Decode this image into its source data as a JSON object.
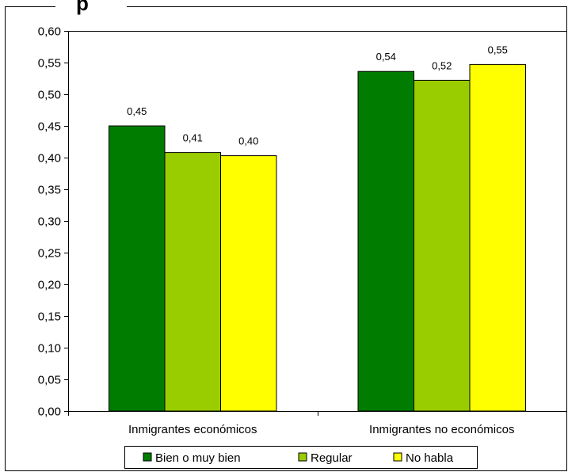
{
  "chart_data": {
    "type": "bar",
    "title": "p",
    "categories": [
      "Inmigrantes económicos",
      "Inmigrantes no económicos"
    ],
    "series": [
      {
        "name": "Bien o muy bien",
        "color": "#007d00",
        "values": [
          0.45,
          0.536
        ],
        "labels": [
          "0,45",
          "0,54"
        ]
      },
      {
        "name": "Regular",
        "color": "#9acd00",
        "values": [
          0.408,
          0.522
        ],
        "labels": [
          "0,41",
          "0,52"
        ]
      },
      {
        "name": "No habla",
        "color": "#ffff00",
        "values": [
          0.403,
          0.547
        ],
        "labels": [
          "0,40",
          "0,55"
        ]
      }
    ],
    "ylim": [
      0,
      0.6
    ],
    "yticks": [
      0.0,
      0.05,
      0.1,
      0.15,
      0.2,
      0.25,
      0.3,
      0.35,
      0.4,
      0.45,
      0.5,
      0.55,
      0.6
    ],
    "ytick_labels": [
      "0,00",
      "0,05",
      "0,10",
      "0,15",
      "0,20",
      "0,25",
      "0,30",
      "0,35",
      "0,40",
      "0,45",
      "0,50",
      "0,55",
      "0,60"
    ],
    "grid": false,
    "legend_position": "bottom"
  }
}
